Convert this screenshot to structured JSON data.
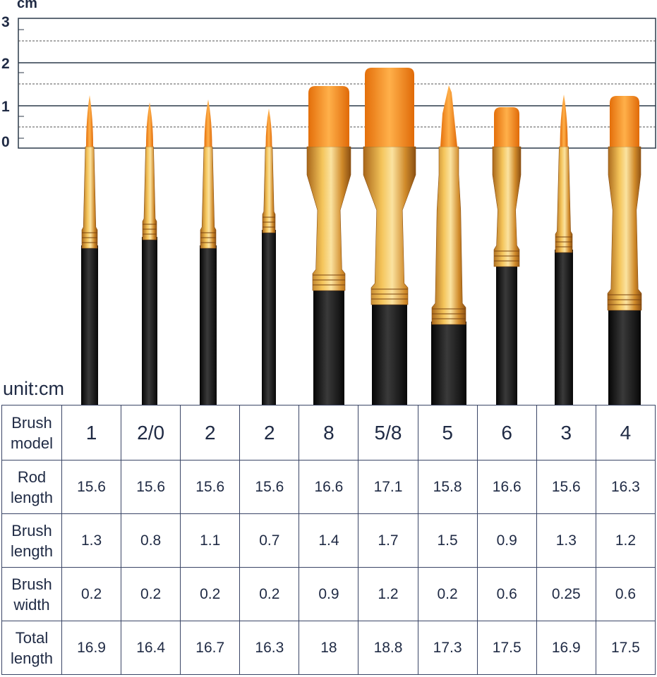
{
  "ruler": {
    "unit": "cm",
    "labels": [
      "3",
      "2",
      "1",
      "0"
    ]
  },
  "unit_label": "unit:cm",
  "table": {
    "rows": [
      {
        "header": [
          "Brush",
          "model"
        ],
        "values": [
          "1",
          "2/0",
          "2",
          "2",
          "8",
          "5/8",
          "5",
          "6",
          "3",
          "4"
        ]
      },
      {
        "header": [
          "Rod",
          "length"
        ],
        "values": [
          "15.6",
          "15.6",
          "15.6",
          "15.6",
          "16.6",
          "17.1",
          "15.8",
          "16.6",
          "15.6",
          "16.3"
        ]
      },
      {
        "header": [
          "Brush",
          "length"
        ],
        "values": [
          "1.3",
          "0.8",
          "1.1",
          "0.7",
          "1.4",
          "1.7",
          "1.5",
          "0.9",
          "1.3",
          "1.2"
        ]
      },
      {
        "header": [
          "Brush",
          "width"
        ],
        "values": [
          "0.2",
          "0.2",
          "0.2",
          "0.2",
          "0.9",
          "1.2",
          "0.2",
          "0.6",
          "0.25",
          "0.6"
        ]
      },
      {
        "header": [
          "Total",
          "length"
        ],
        "values": [
          "16.9",
          "16.4",
          "16.7",
          "16.3",
          "18",
          "18.8",
          "17.3",
          "17.5",
          "16.9",
          "17.5"
        ]
      }
    ]
  },
  "brushes": [
    {
      "type": "round"
    },
    {
      "type": "round"
    },
    {
      "type": "round"
    },
    {
      "type": "round"
    },
    {
      "type": "flat"
    },
    {
      "type": "flat"
    },
    {
      "type": "angle"
    },
    {
      "type": "flat"
    },
    {
      "type": "round"
    },
    {
      "type": "flat"
    }
  ],
  "colors": {
    "ink": "#1f2a44",
    "bristle": "#f5901e",
    "ferrule": "#e0a43a",
    "handle": "#1a1a1a"
  }
}
